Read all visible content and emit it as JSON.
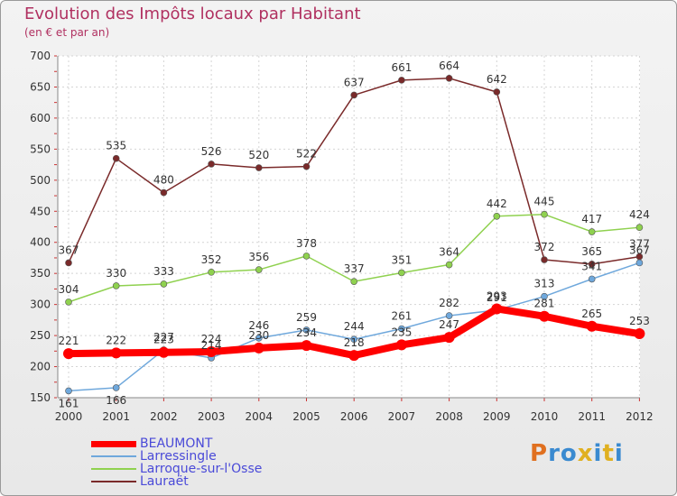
{
  "chart_data": {
    "type": "line",
    "title": "Evolution des Impôts locaux par Habitant",
    "subtitle": "(en € et par an)",
    "categories": [
      "2000",
      "2001",
      "2002",
      "2003",
      "2004",
      "2005",
      "2006",
      "2007",
      "2008",
      "2009",
      "2010",
      "2011",
      "2012"
    ],
    "ylim": [
      150,
      700
    ],
    "yticks": [
      150,
      200,
      250,
      300,
      350,
      400,
      450,
      500,
      550,
      600,
      650,
      700
    ],
    "series": [
      {
        "name": "BEAUMONT",
        "color": "#ff0000",
        "values": [
          221,
          222,
          223,
          224,
          230,
          234,
          218,
          235,
          247,
          293,
          281,
          265,
          253
        ]
      },
      {
        "name": "Larressingle",
        "color": "#6fa8dc",
        "values": [
          161,
          166,
          227,
          214,
          246,
          259,
          244,
          261,
          282,
          291,
          313,
          341,
          367
        ]
      },
      {
        "name": "Larroque-sur-l'Osse",
        "color": "#8fd14f",
        "values": [
          304,
          330,
          333,
          352,
          356,
          378,
          337,
          351,
          364,
          442,
          445,
          417,
          424
        ]
      },
      {
        "name": "Lauraët",
        "color": "#7a2a2a",
        "values": [
          367,
          535,
          480,
          526,
          520,
          522,
          637,
          661,
          664,
          642,
          372,
          365,
          377
        ]
      }
    ]
  },
  "logo": {
    "text": "Proxiti",
    "colors": [
      "#e07020",
      "#3a8ad0",
      "#3a8ad0",
      "#e0b020",
      "#3a8ad0",
      "#e0b020",
      "#3a8ad0"
    ]
  }
}
